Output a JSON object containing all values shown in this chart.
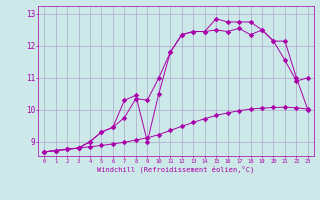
{
  "bg_color": "#cce8e8",
  "grid_color": "#aaaacc",
  "line_color": "#aa00aa",
  "xlabel": "Windchill (Refroidissement éolien,°C)",
  "xlim": [
    -0.5,
    23.5
  ],
  "ylim": [
    8.55,
    13.25
  ],
  "xticks": [
    0,
    1,
    2,
    3,
    4,
    5,
    6,
    7,
    8,
    9,
    10,
    11,
    12,
    13,
    14,
    15,
    16,
    17,
    18,
    19,
    20,
    21,
    22,
    23
  ],
  "yticks": [
    9,
    10,
    11,
    12,
    13
  ],
  "line1_x": [
    0,
    1,
    2,
    3,
    4,
    5,
    6,
    7,
    8,
    9,
    10,
    11,
    12,
    13,
    14,
    15,
    16,
    17,
    18,
    19,
    20,
    21,
    22,
    23
  ],
  "line1_y": [
    8.68,
    8.72,
    8.76,
    8.8,
    8.84,
    8.88,
    8.93,
    8.98,
    9.05,
    9.12,
    9.22,
    9.35,
    9.48,
    9.6,
    9.72,
    9.82,
    9.9,
    9.97,
    10.02,
    10.05,
    10.07,
    10.08,
    10.06,
    10.02
  ],
  "line2_x": [
    0,
    1,
    2,
    3,
    4,
    5,
    6,
    7,
    8,
    9,
    10,
    11,
    12,
    13,
    14,
    15,
    16,
    17,
    18,
    19,
    20,
    21,
    22,
    23
  ],
  "line2_y": [
    8.68,
    8.72,
    8.76,
    8.8,
    9.0,
    9.3,
    9.45,
    9.75,
    10.35,
    10.3,
    11.0,
    11.8,
    12.35,
    12.45,
    12.45,
    12.5,
    12.45,
    12.55,
    12.35,
    12.5,
    12.15,
    12.15,
    11.0,
    10.0
  ],
  "line3_x": [
    0,
    1,
    2,
    3,
    4,
    5,
    6,
    7,
    8,
    9,
    10,
    11,
    12,
    13,
    14,
    15,
    16,
    17,
    18,
    19,
    20,
    21,
    22,
    23
  ],
  "line3_y": [
    8.68,
    8.72,
    8.76,
    8.8,
    9.0,
    9.3,
    9.45,
    10.3,
    10.45,
    9.0,
    10.5,
    11.8,
    12.35,
    12.45,
    12.45,
    12.85,
    12.75,
    12.75,
    12.75,
    12.5,
    12.15,
    11.55,
    10.9,
    11.0
  ]
}
